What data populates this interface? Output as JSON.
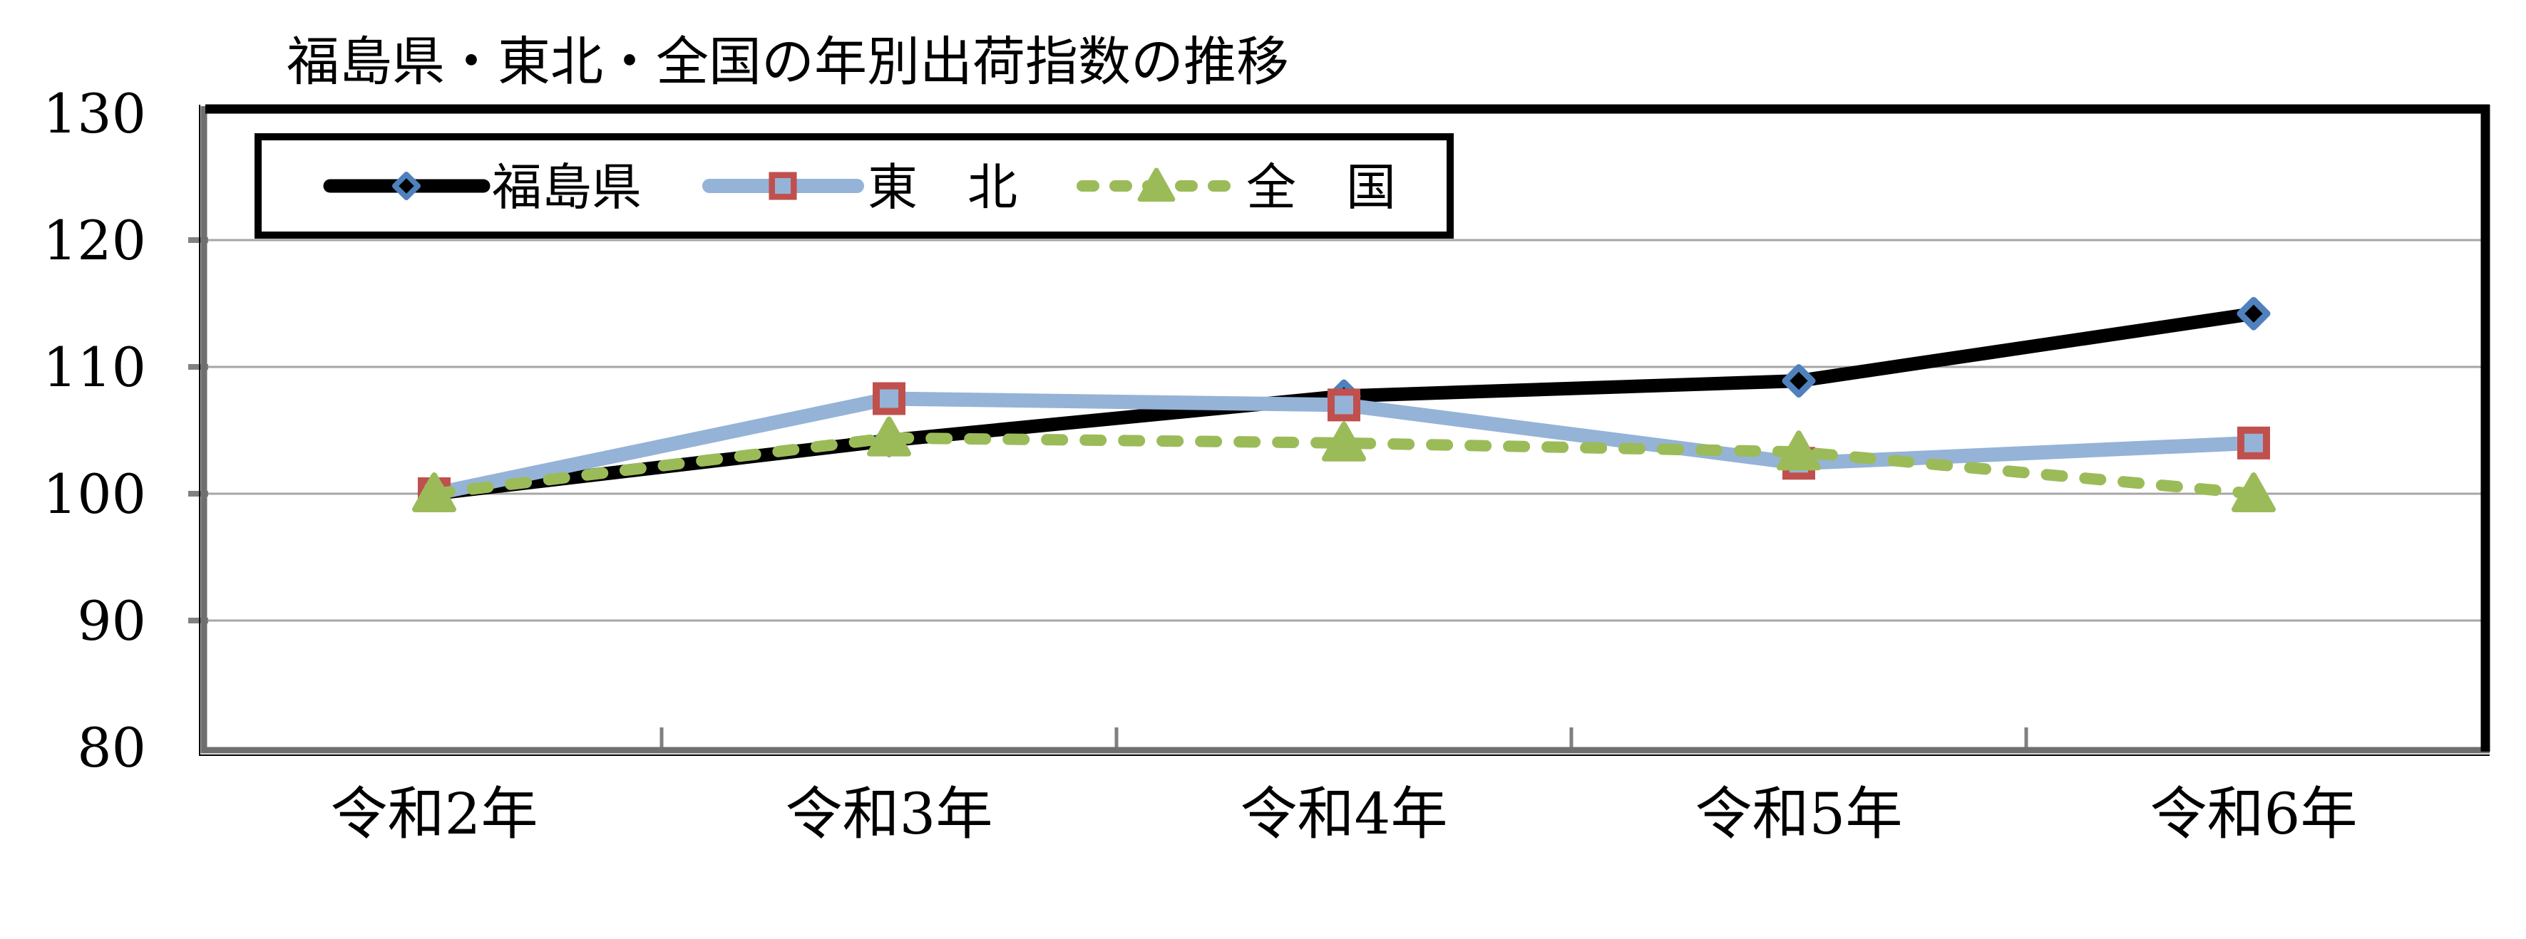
{
  "page": {
    "background": "#ffffff"
  },
  "chart_data": {
    "type": "line",
    "title": "福島県・東北・全国の年別出荷指数の推移",
    "categories": [
      "令和2年",
      "令和3年",
      "令和4年",
      "令和5年",
      "令和6年"
    ],
    "y_axis": {
      "min": 80,
      "max": 130,
      "tick_interval": 10,
      "ticks": [
        130,
        120,
        110,
        100,
        90,
        80
      ]
    },
    "grid": "horizontal-only",
    "legend_position": "top-left-inside",
    "series": [
      {
        "name": "福島県",
        "legend_label": "福島県",
        "values": [
          100.0,
          104.2,
          107.7,
          108.9,
          114.2
        ],
        "line_color": "#000000",
        "line_style": "solid",
        "marker": "diamond",
        "marker_fill": "#000000",
        "marker_border": "#4F81BD"
      },
      {
        "name": "東北",
        "legend_label": "東　北",
        "values": [
          100.0,
          107.5,
          107.0,
          102.4,
          104.0
        ],
        "line_color": "#95B3D7",
        "line_style": "solid",
        "marker": "square",
        "marker_fill": "#95B3D7",
        "marker_border": "#C0504D"
      },
      {
        "name": "全国",
        "legend_label": "全　国",
        "values": [
          100.0,
          104.4,
          104.0,
          103.3,
          100.0
        ],
        "line_color": "#9BBB59",
        "line_style": "dashed",
        "marker": "triangle",
        "marker_fill": "#9BBB59",
        "marker_border": "#9BBB59"
      }
    ],
    "colors": {
      "gridline": "#A6A6A6",
      "tick": "#808080",
      "plot_border_gray": "#6F6F6F",
      "plot_border_black": "#000000",
      "legend_border": "#000000",
      "background": "#FFFFFF",
      "text": "#000000"
    }
  }
}
